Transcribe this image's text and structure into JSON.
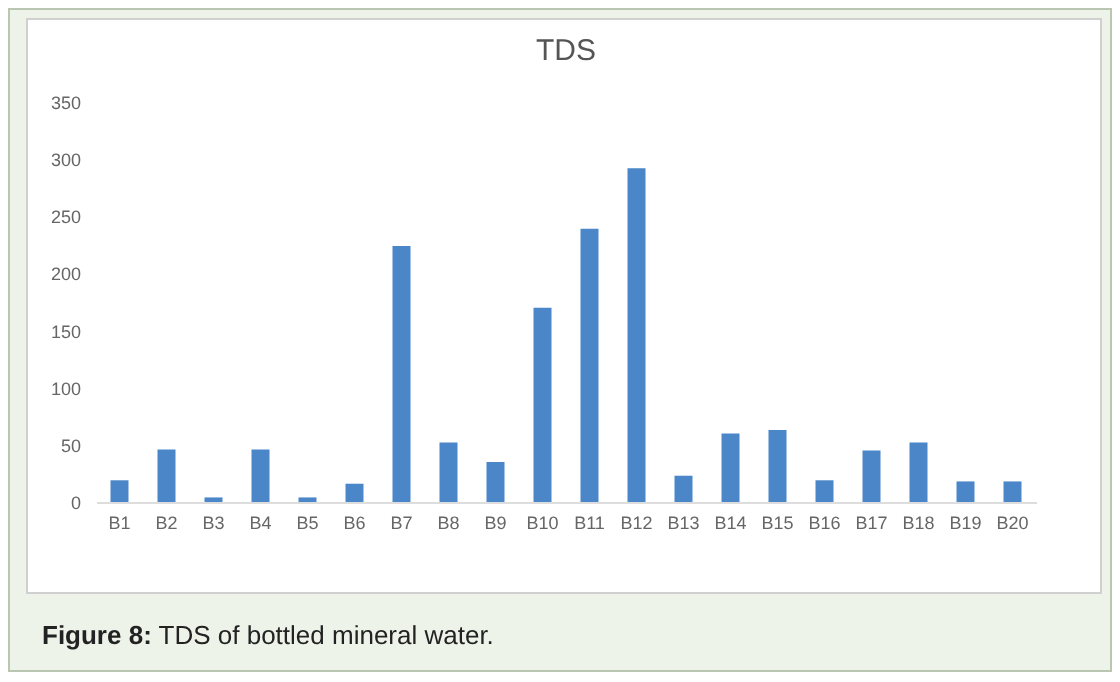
{
  "chart_data": {
    "type": "bar",
    "title": "TDS",
    "categories": [
      "B1",
      "B2",
      "B3",
      "B4",
      "B5",
      "B6",
      "B7",
      "B8",
      "B9",
      "B10",
      "B11",
      "B12",
      "B13",
      "B14",
      "B15",
      "B16",
      "B17",
      "B18",
      "B19",
      "B20"
    ],
    "values": [
      19,
      46,
      4,
      46,
      4,
      16,
      224,
      52,
      35,
      170,
      239,
      292,
      23,
      60,
      63,
      19,
      45,
      52,
      18,
      18
    ],
    "color": "#4a86c8",
    "ylim": [
      0,
      350
    ],
    "yticks": [
      0,
      50,
      100,
      150,
      200,
      250,
      300,
      350
    ],
    "annotations": [
      "Figure 8: TDS of bottled mineral water."
    ]
  }
}
